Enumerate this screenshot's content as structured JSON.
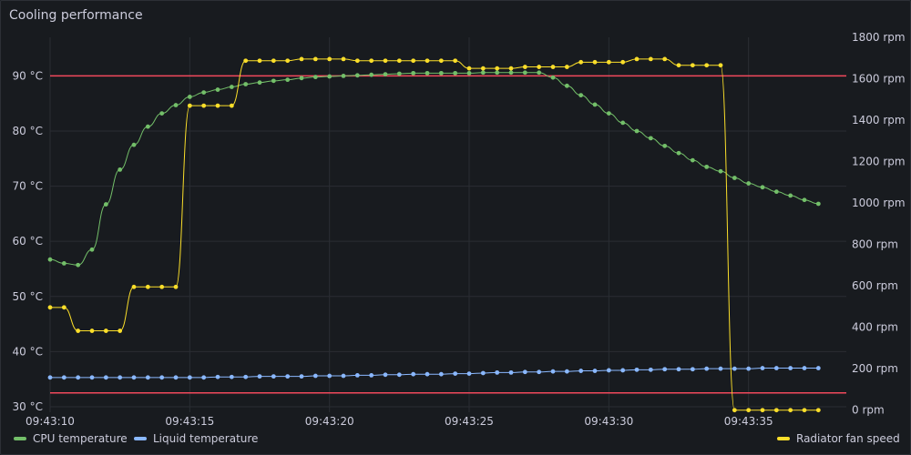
{
  "panel": {
    "title": "Cooling performance"
  },
  "chart_data": {
    "type": "line",
    "title": "Cooling performance",
    "x_labels": [
      "09:43:10",
      "09:43:15",
      "09:43:20",
      "09:43:25",
      "09:43:30",
      "09:43:35"
    ],
    "x": [
      10,
      10.5,
      11,
      11.5,
      12,
      12.5,
      13,
      13.5,
      14,
      14.5,
      15,
      15.5,
      16,
      16.5,
      17,
      17.5,
      18,
      18.5,
      19,
      19.5,
      20,
      20.5,
      21,
      21.5,
      22,
      22.5,
      23,
      23.5,
      24,
      24.5,
      25,
      25.5,
      26,
      26.5,
      27,
      27.5,
      28,
      28.5,
      29,
      29.5,
      30,
      30.5,
      31,
      31.5,
      32,
      32.5,
      33,
      33.5,
      34,
      34.5,
      35,
      35.5,
      36,
      36.5,
      37,
      37.5,
      38,
      38.5
    ],
    "x_unit_note": "seconds past 09:43:00",
    "y_left": {
      "ticks": [
        "30 °C",
        "40 °C",
        "50 °C",
        "60 °C",
        "70 °C",
        "80 °C",
        "90 °C"
      ],
      "range": [
        29,
        97
      ]
    },
    "y_right": {
      "ticks": [
        "0 rpm",
        "200 rpm",
        "400 rpm",
        "600 rpm",
        "800 rpm",
        "1000 rpm",
        "1200 rpm",
        "1400 rpm",
        "1600 rpm",
        "1800 rpm"
      ],
      "range": [
        -10,
        1800
      ]
    },
    "thresholds": [
      {
        "value": 90,
        "axis": "left",
        "color": "#f2495c"
      },
      {
        "value": 32.5,
        "axis": "left",
        "color": "#f2495c"
      }
    ],
    "series": [
      {
        "name": "CPU temperature",
        "axis": "left",
        "color": "#73bf69",
        "values": [
          56.7,
          56.0,
          55.7,
          58.5,
          66.7,
          73.0,
          77.5,
          80.8,
          83.2,
          84.7,
          86.2,
          87.0,
          87.5,
          88.0,
          88.5,
          88.8,
          89.1,
          89.3,
          89.6,
          89.8,
          89.9,
          90.0,
          90.1,
          90.2,
          90.3,
          90.4,
          90.5,
          90.5,
          90.5,
          90.5,
          90.5,
          90.6,
          90.6,
          90.6,
          90.6,
          90.6,
          89.7,
          88.2,
          86.5,
          84.8,
          83.2,
          81.5,
          80.0,
          78.7,
          77.3,
          76.0,
          74.7,
          73.5,
          72.7,
          71.5,
          70.5,
          69.8,
          69.0,
          68.3,
          67.5,
          66.8,
          null,
          null
        ]
      },
      {
        "name": "Liquid temperature",
        "axis": "left",
        "color": "#8ab8ff",
        "values": [
          35.3,
          35.3,
          35.3,
          35.3,
          35.3,
          35.3,
          35.3,
          35.3,
          35.3,
          35.3,
          35.3,
          35.3,
          35.4,
          35.4,
          35.4,
          35.5,
          35.5,
          35.5,
          35.5,
          35.6,
          35.6,
          35.6,
          35.7,
          35.7,
          35.8,
          35.8,
          35.9,
          35.9,
          35.9,
          36.0,
          36.0,
          36.1,
          36.2,
          36.2,
          36.3,
          36.3,
          36.4,
          36.4,
          36.5,
          36.5,
          36.6,
          36.6,
          36.7,
          36.7,
          36.8,
          36.8,
          36.8,
          36.9,
          36.9,
          36.9,
          36.9,
          37.0,
          37.0,
          37.0,
          37.0,
          37.0,
          null,
          null
        ]
      },
      {
        "name": "Radiator fan speed",
        "axis": "right",
        "color": "#fade2a",
        "values": [
          496,
          496,
          383,
          383,
          383,
          383,
          595,
          595,
          595,
          595,
          1470,
          1470,
          1470,
          1470,
          1687,
          1687,
          1687,
          1687,
          1695,
          1695,
          1695,
          1695,
          1687,
          1687,
          1687,
          1687,
          1687,
          1687,
          1687,
          1687,
          1650,
          1650,
          1650,
          1650,
          1657,
          1657,
          1657,
          1657,
          1680,
          1680,
          1680,
          1680,
          1695,
          1695,
          1695,
          1665,
          1665,
          1665,
          1665,
          0,
          0,
          0,
          0,
          0,
          0,
          0,
          null,
          null
        ]
      }
    ],
    "legend": {
      "placement": "bottom"
    },
    "grid": true
  }
}
